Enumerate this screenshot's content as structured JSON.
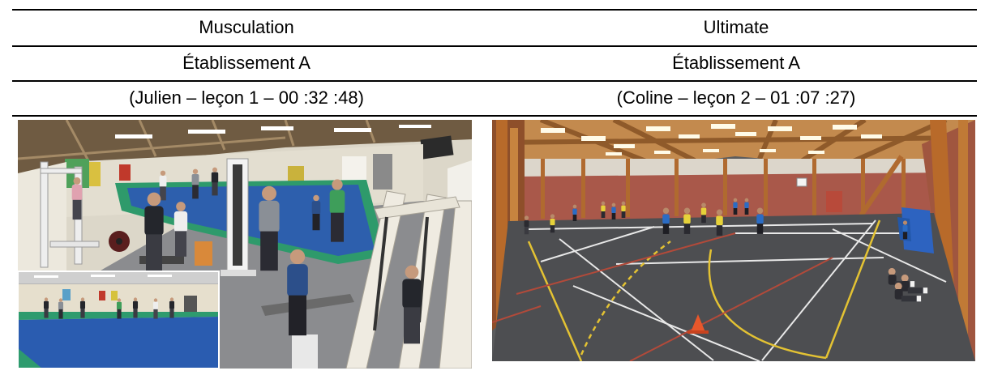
{
  "table": {
    "columns": [
      {
        "activity": "Musculation",
        "school": "Établissement A",
        "session": "(Julien – leçon 1 – 00 :32 :48)"
      },
      {
        "activity": "Ultimate",
        "school": "Établissement A",
        "session": "(Coline – leçon 2 – 01 :07 :27)"
      }
    ]
  },
  "colors": {
    "rule": "#000000",
    "text": "#000000",
    "background": "#ffffff"
  }
}
